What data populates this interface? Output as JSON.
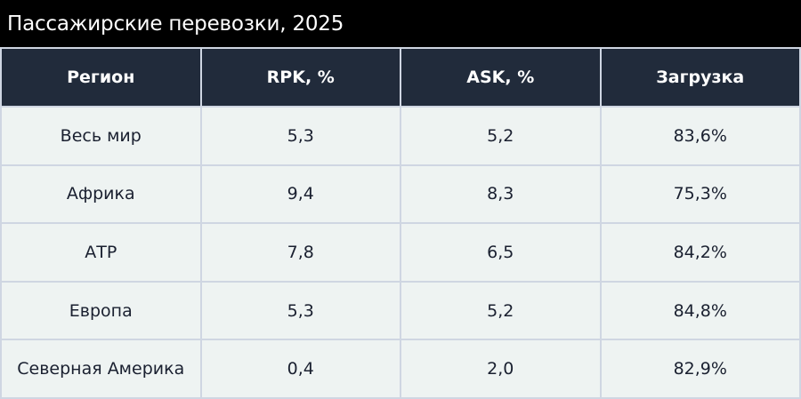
{
  "title": "Пассажирские перевозки, 2025",
  "chart_data": {
    "type": "table",
    "title": "Пассажирские перевозки, 2025",
    "columns": [
      "Регион",
      "RPK, %",
      "ASK, %",
      "Загрузка"
    ],
    "rows": [
      [
        "Весь мир",
        "5,3",
        "5,2",
        "83,6%"
      ],
      [
        "Африка",
        "9,4",
        "8,3",
        "75,3%"
      ],
      [
        "АТР",
        "7,8",
        "6,5",
        "84,2%"
      ],
      [
        "Европа",
        "5,3",
        "5,2",
        "84,8%"
      ],
      [
        "Северная Америка",
        "0,4",
        "2,0",
        "82,9%"
      ]
    ]
  },
  "colors": {
    "title_background": "#000000",
    "header_background": "#212b3b",
    "cell_background": "#eef3f2",
    "grid_lines": "#cfd6e2"
  }
}
